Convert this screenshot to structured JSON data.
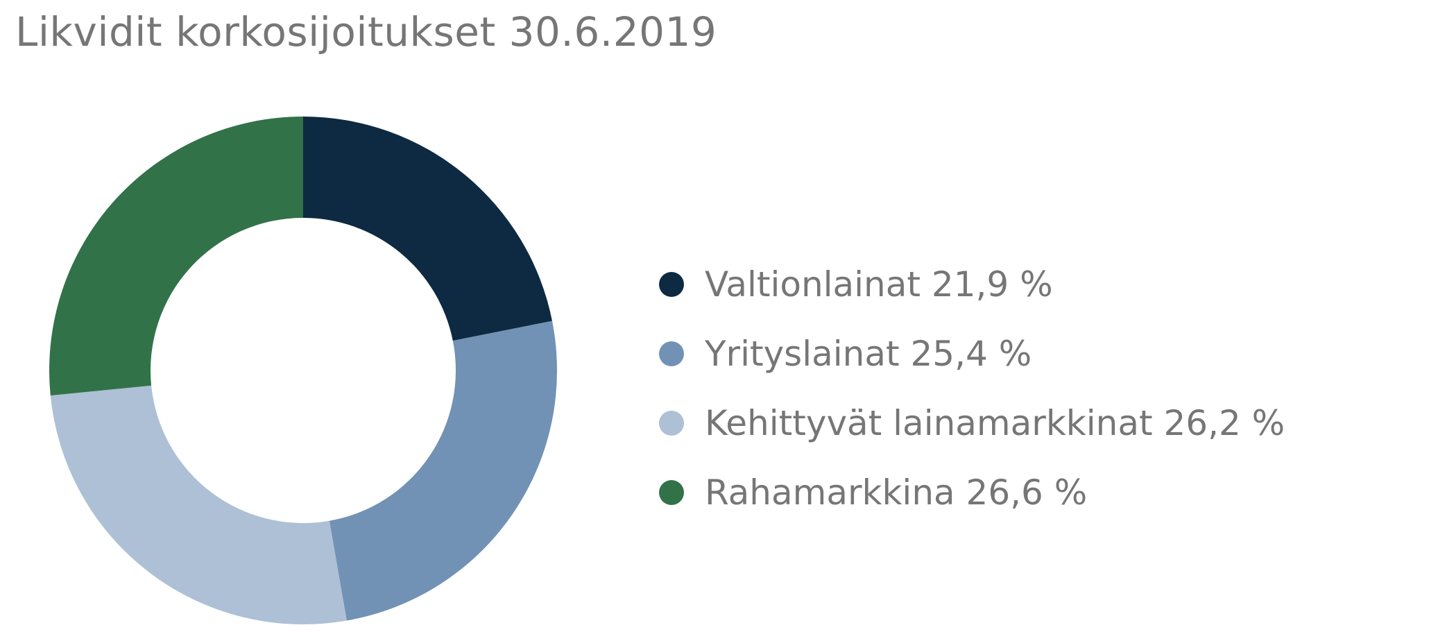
{
  "chart_data": {
    "type": "pie",
    "title": "Likvidit korkosijoitukset 30.6.2019",
    "donut": true,
    "start": "12 o'clock, clockwise",
    "legend_position": "right",
    "slices": [
      {
        "label": "Valtionlainat",
        "value": 21.9,
        "display_value": "21,9 %",
        "color": "#0d2a42"
      },
      {
        "label": "Yrityslainat",
        "value": 25.4,
        "display_value": "25,4 %",
        "color": "#7192b5"
      },
      {
        "label": "Kehittyvät lainamarkkinat",
        "value": 26.2,
        "display_value": "26,2 %",
        "color": "#adc0d5"
      },
      {
        "label": "Rahamarkkina",
        "value": 26.6,
        "display_value": "26,6 %",
        "color": "#327249"
      }
    ]
  }
}
